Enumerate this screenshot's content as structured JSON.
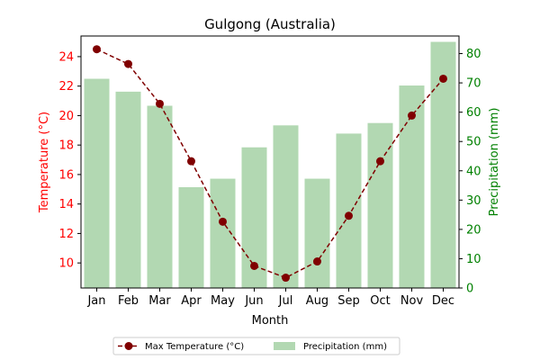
{
  "chart_data": {
    "type": "bar",
    "title": "Gulgong (Australia)",
    "xlabel": "Month",
    "categories": [
      "Jan",
      "Feb",
      "Mar",
      "Apr",
      "May",
      "Jun",
      "Jul",
      "Aug",
      "Sep",
      "Oct",
      "Nov",
      "Dec"
    ],
    "y_left": {
      "label": "Temperature (°C)",
      "color": "#ff0000",
      "ylim": [
        8.3,
        25.4
      ],
      "ticks": [
        10,
        12,
        14,
        16,
        18,
        20,
        22,
        24
      ]
    },
    "y_right": {
      "label": "Precipitation (mm)",
      "color": "#008000",
      "ylim": [
        0,
        86
      ],
      "ticks": [
        0,
        10,
        20,
        30,
        40,
        50,
        60,
        70,
        80
      ]
    },
    "series": [
      {
        "name": "Max Temperature (°C)",
        "kind": "line",
        "axis": "left",
        "color": "#800000",
        "linestyle": "dashed",
        "marker": "circle",
        "values": [
          24.5,
          23.5,
          20.8,
          16.9,
          12.8,
          9.8,
          9.0,
          10.1,
          13.2,
          16.9,
          20.0,
          22.5
        ]
      },
      {
        "name": "Precipitation (mm)",
        "kind": "bar",
        "axis": "right",
        "color": "#b2d8b2",
        "values": [
          71.4,
          67.0,
          62.2,
          34.4,
          37.3,
          48.0,
          55.5,
          37.3,
          52.7,
          56.3,
          69.1,
          84.0
        ]
      }
    ],
    "legend": {
      "placement": "bottom-center",
      "ncol": 2
    },
    "grid": false
  }
}
